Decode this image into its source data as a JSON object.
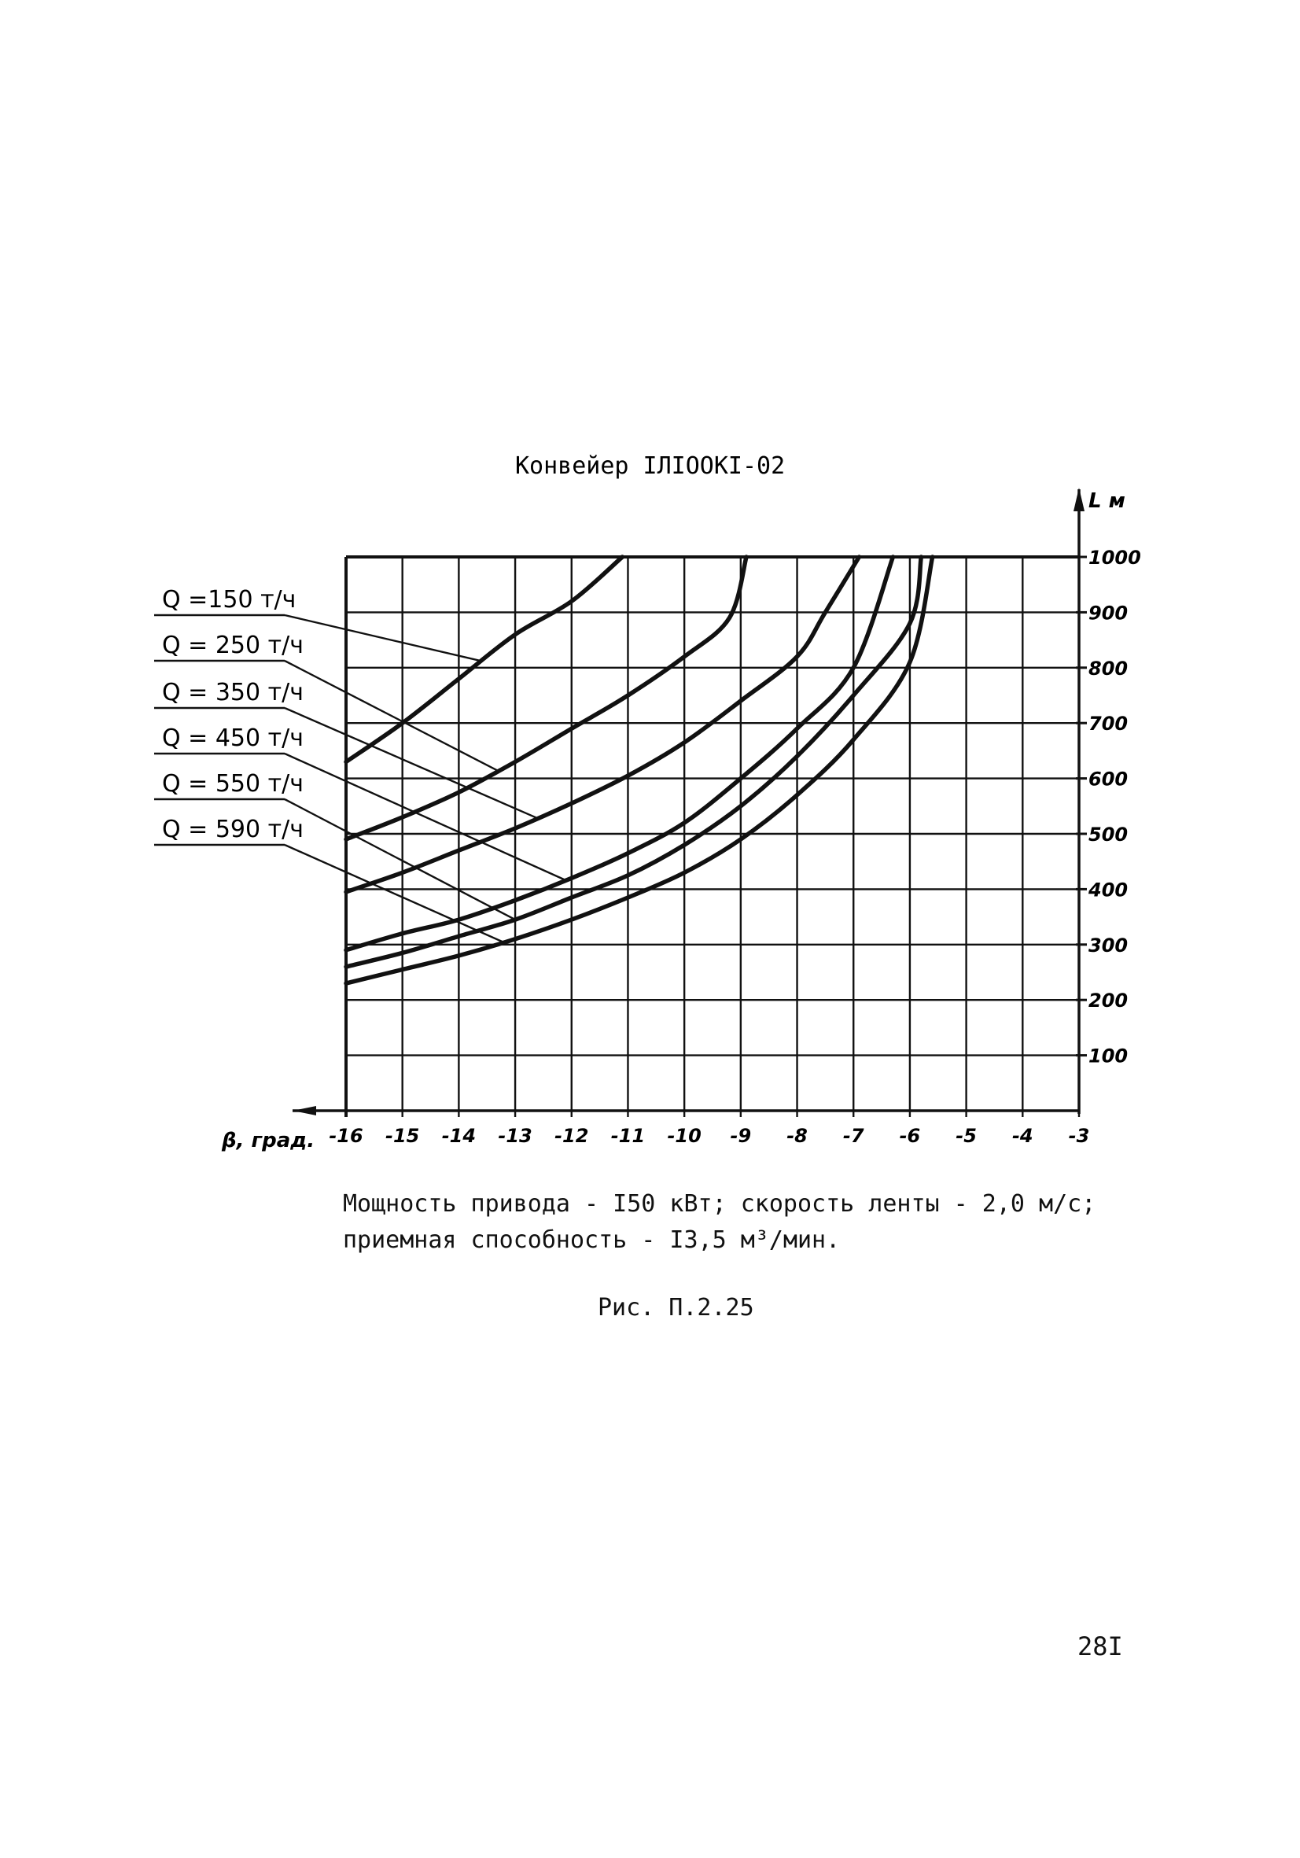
{
  "page_number": "28I",
  "caption": {
    "line1": "Мощность привода - I50 кВт; скорость ленты - 2,0 м/с;",
    "line2": "приемная способность - I3,5 м³/мин."
  },
  "figure_label": "Рис. П.2.25",
  "colors": {
    "ink": "#111111",
    "background": "#ffffff"
  },
  "chart_data": {
    "type": "line",
    "title": "Конвейер IЛIOOKI-02",
    "xlabel": "β, град.",
    "ylabel": "L м",
    "xlim": [
      -16,
      -3
    ],
    "ylim": [
      0,
      1000
    ],
    "x_axis_direction": "reversed",
    "y_axis_side": "right",
    "grid": true,
    "x_tick_labels": [
      "-16",
      "-15",
      "-14",
      "-13",
      "-12",
      "-11",
      "-10",
      "-9",
      "-8",
      "-7",
      "-6",
      "-5",
      "-4",
      "-3"
    ],
    "y_tick_labels": [
      "1000",
      "900",
      "800",
      "700",
      "600",
      "500",
      "400",
      "300",
      "200",
      "100"
    ],
    "series": [
      {
        "name": "Q =150 т/ч",
        "points": [
          [
            -16,
            630
          ],
          [
            -15,
            700
          ],
          [
            -14,
            780
          ],
          [
            -13,
            860
          ],
          [
            -12,
            920
          ],
          [
            -11.1,
            1000
          ]
        ]
      },
      {
        "name": "Q = 250 т/ч",
        "points": [
          [
            -16,
            490
          ],
          [
            -15,
            530
          ],
          [
            -14,
            575
          ],
          [
            -13,
            630
          ],
          [
            -12,
            690
          ],
          [
            -11,
            750
          ],
          [
            -10,
            820
          ],
          [
            -9.2,
            890
          ],
          [
            -8.9,
            1000
          ]
        ]
      },
      {
        "name": "Q = 350 т/ч",
        "points": [
          [
            -16,
            395
          ],
          [
            -15,
            430
          ],
          [
            -14,
            470
          ],
          [
            -13,
            510
          ],
          [
            -12,
            555
          ],
          [
            -11,
            605
          ],
          [
            -10,
            665
          ],
          [
            -9,
            740
          ],
          [
            -8,
            820
          ],
          [
            -7.5,
            900
          ],
          [
            -6.9,
            1000
          ]
        ]
      },
      {
        "name": "Q = 450 т/ч",
        "points": [
          [
            -16,
            290
          ],
          [
            -15,
            320
          ],
          [
            -14,
            345
          ],
          [
            -13,
            380
          ],
          [
            -12,
            420
          ],
          [
            -11,
            465
          ],
          [
            -10,
            520
          ],
          [
            -9,
            600
          ],
          [
            -8,
            690
          ],
          [
            -7,
            800
          ],
          [
            -6.3,
            1000
          ]
        ]
      },
      {
        "name": "Q = 550 т/ч",
        "points": [
          [
            -16,
            260
          ],
          [
            -15,
            285
          ],
          [
            -14,
            315
          ],
          [
            -13,
            345
          ],
          [
            -12,
            385
          ],
          [
            -11,
            425
          ],
          [
            -10,
            480
          ],
          [
            -9,
            550
          ],
          [
            -8,
            640
          ],
          [
            -7,
            750
          ],
          [
            -6,
            880
          ],
          [
            -5.8,
            1000
          ]
        ]
      },
      {
        "name": "Q = 590 т/ч",
        "points": [
          [
            -16,
            230
          ],
          [
            -15,
            255
          ],
          [
            -14,
            280
          ],
          [
            -13,
            310
          ],
          [
            -12,
            345
          ],
          [
            -11,
            385
          ],
          [
            -10,
            430
          ],
          [
            -9,
            490
          ],
          [
            -8,
            570
          ],
          [
            -7,
            670
          ],
          [
            -6,
            810
          ],
          [
            -5.6,
            1000
          ]
        ]
      }
    ],
    "legend_placement": "left"
  }
}
